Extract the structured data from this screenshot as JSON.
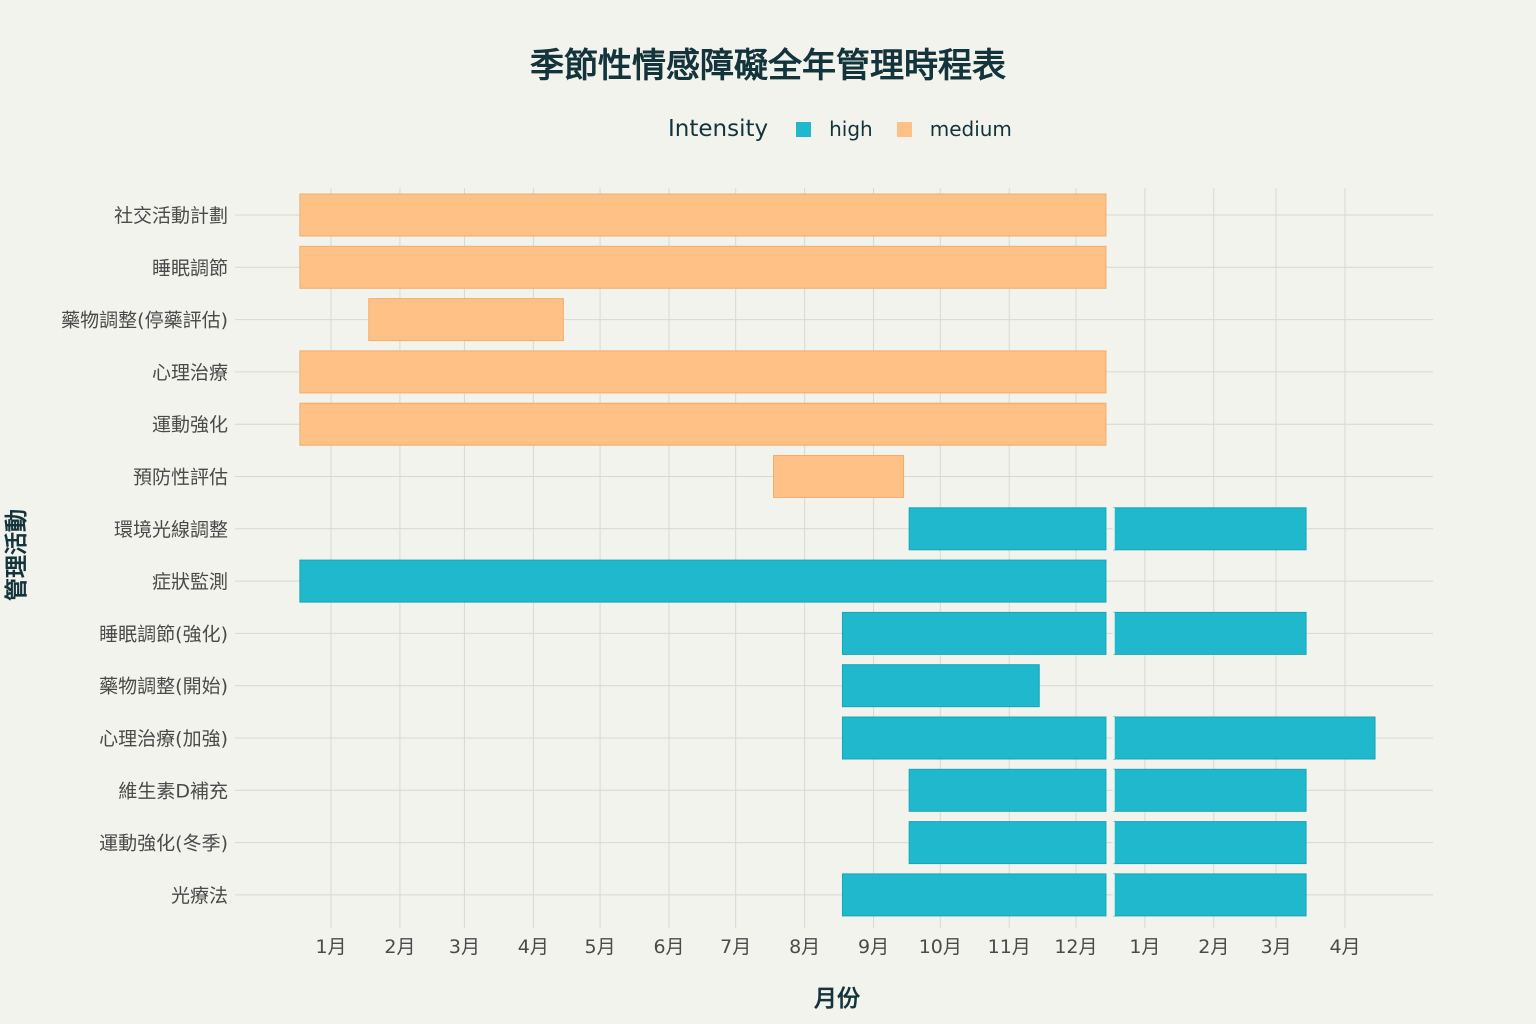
{
  "chart_data": {
    "type": "gantt",
    "title": "季節性情感障礙全年管理時程表",
    "xlabel": "月份",
    "ylabel": "管理活動",
    "legend": {
      "title": "Intensity",
      "position": "top-center",
      "entries": [
        {
          "name": "high",
          "color": "#1fb8cd"
        },
        {
          "name": "medium",
          "color": "#ffc185"
        }
      ]
    },
    "x_ticks": [
      {
        "date": "2024-01-01",
        "label": "1月"
      },
      {
        "date": "2024-02-01",
        "label": "2月"
      },
      {
        "date": "2024-03-01",
        "label": "3月"
      },
      {
        "date": "2024-04-01",
        "label": "4月"
      },
      {
        "date": "2024-05-01",
        "label": "5月"
      },
      {
        "date": "2024-06-01",
        "label": "6月"
      },
      {
        "date": "2024-07-01",
        "label": "7月"
      },
      {
        "date": "2024-08-01",
        "label": "8月"
      },
      {
        "date": "2024-09-01",
        "label": "9月"
      },
      {
        "date": "2024-10-01",
        "label": "10月"
      },
      {
        "date": "2024-11-01",
        "label": "11月"
      },
      {
        "date": "2024-12-01",
        "label": "12月"
      },
      {
        "date": "2025-01-01",
        "label": "1月"
      },
      {
        "date": "2025-02-01",
        "label": "2月"
      },
      {
        "date": "2025-03-01",
        "label": "3月"
      },
      {
        "date": "2025-04-01",
        "label": "4月"
      }
    ],
    "tasks": [
      {
        "name": "社交活動計劃",
        "intensity": "medium",
        "segments": [
          [
            "2024-01",
            "2024-12"
          ]
        ]
      },
      {
        "name": "睡眠調節",
        "intensity": "medium",
        "segments": [
          [
            "2024-01",
            "2024-12"
          ]
        ]
      },
      {
        "name": "藥物調整(停藥評估)",
        "intensity": "medium",
        "segments": [
          [
            "2024-02",
            "2024-04"
          ]
        ]
      },
      {
        "name": "心理治療",
        "intensity": "medium",
        "segments": [
          [
            "2024-01",
            "2024-12"
          ]
        ]
      },
      {
        "name": "運動強化",
        "intensity": "medium",
        "segments": [
          [
            "2024-01",
            "2024-12"
          ]
        ]
      },
      {
        "name": "預防性評估",
        "intensity": "medium",
        "segments": [
          [
            "2024-08",
            "2024-09"
          ]
        ]
      },
      {
        "name": "環境光線調整",
        "intensity": "high",
        "segments": [
          [
            "2024-10",
            "2024-12"
          ],
          [
            "2025-01",
            "2025-03"
          ]
        ]
      },
      {
        "name": "症狀監測",
        "intensity": "high",
        "segments": [
          [
            "2024-01",
            "2024-12"
          ]
        ]
      },
      {
        "name": "睡眠調節(強化)",
        "intensity": "high",
        "segments": [
          [
            "2024-09",
            "2024-12"
          ],
          [
            "2025-01",
            "2025-03"
          ]
        ]
      },
      {
        "name": "藥物調整(開始)",
        "intensity": "high",
        "segments": [
          [
            "2024-09",
            "2024-11"
          ]
        ]
      },
      {
        "name": "心理治療(加強)",
        "intensity": "high",
        "segments": [
          [
            "2024-09",
            "2024-12"
          ],
          [
            "2025-01",
            "2025-04"
          ]
        ]
      },
      {
        "name": "維生素D補充",
        "intensity": "high",
        "segments": [
          [
            "2024-10",
            "2024-12"
          ],
          [
            "2025-01",
            "2025-03"
          ]
        ]
      },
      {
        "name": "運動強化(冬季)",
        "intensity": "high",
        "segments": [
          [
            "2024-10",
            "2024-12"
          ],
          [
            "2025-01",
            "2025-03"
          ]
        ]
      },
      {
        "name": "光療法",
        "intensity": "high",
        "segments": [
          [
            "2024-09",
            "2024-12"
          ],
          [
            "2025-01",
            "2025-03"
          ]
        ]
      }
    ]
  }
}
